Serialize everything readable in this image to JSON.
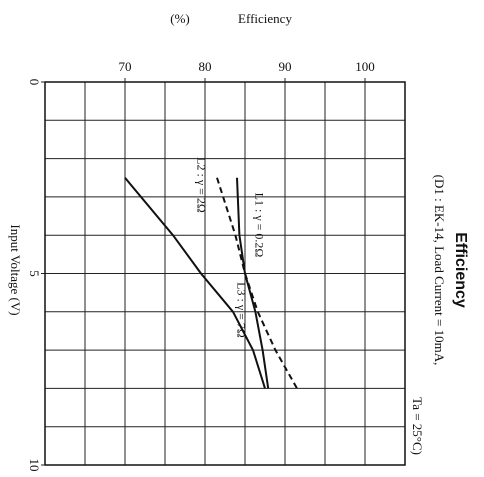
{
  "chart_data": {
    "type": "line",
    "title": "Efficiency",
    "subtitle": [
      "(D1 : EK-14, Load Current = 10mA,",
      "Ta = 25°C)"
    ],
    "xlabel": "Input Voltage (V)",
    "ylabel": "Efficiency",
    "yunit": "(%)",
    "x": [
      2.5,
      4,
      5,
      6,
      7,
      8
    ],
    "series": [
      {
        "name": "L1 : γ = 0.2Ω",
        "color": "#111111",
        "dashed": false,
        "values": [
          84.0,
          84.3,
          85.0,
          86.3,
          87.2,
          87.9
        ]
      },
      {
        "name": "L2 : γ = 2Ω",
        "color": "#111111",
        "dashed": true,
        "values": [
          81.5,
          83.8,
          85.0,
          86.6,
          88.8,
          91.5
        ]
      },
      {
        "name": "L3 : γ = 7Ω",
        "color": "#111111",
        "dashed": false,
        "values": [
          70,
          76,
          79.5,
          83.5,
          86,
          87.5
        ]
      }
    ],
    "xlim": [
      0,
      10
    ],
    "xticks": [
      0,
      5,
      10
    ],
    "xgrid_step": 1,
    "ylim": [
      60,
      105
    ],
    "yticks": [
      70,
      80,
      90,
      100
    ],
    "ygrid_step": 5,
    "grid": true
  }
}
